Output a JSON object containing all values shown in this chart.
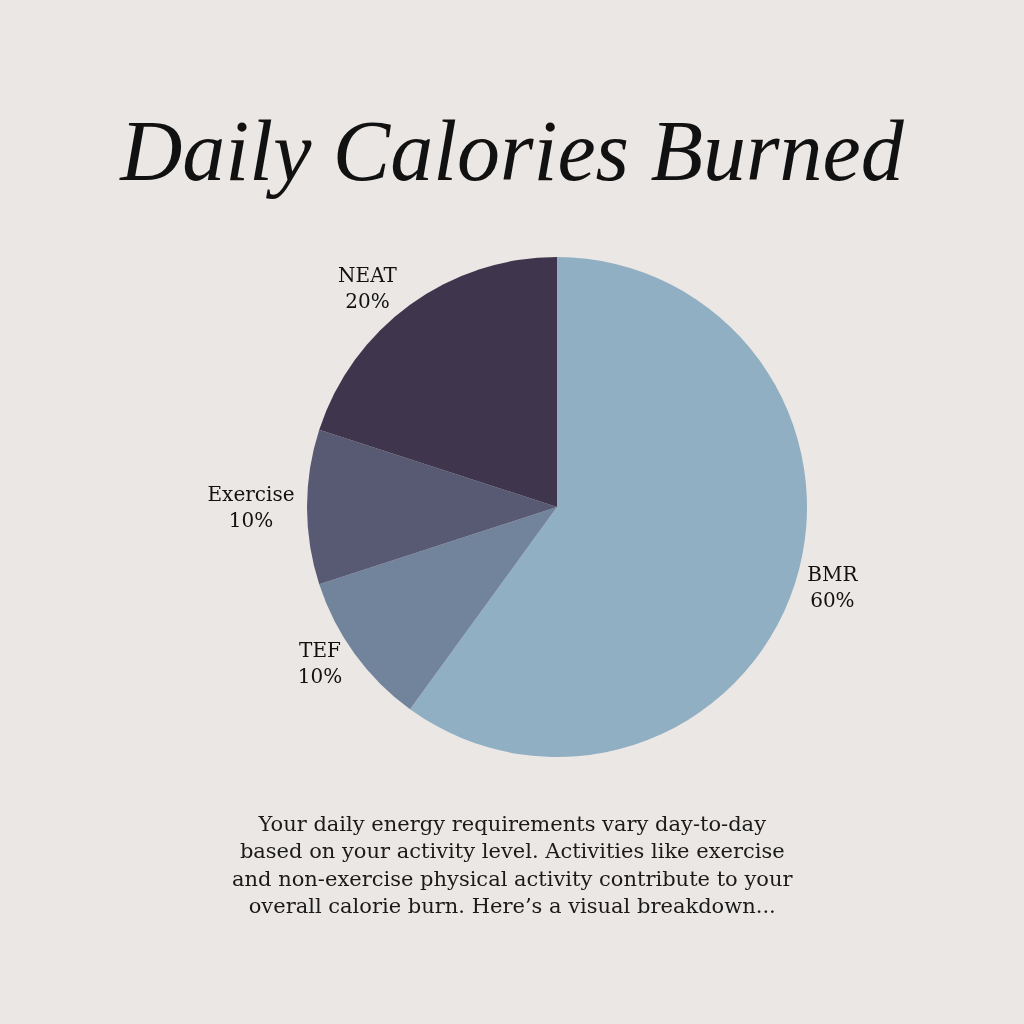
{
  "chart_data": {
    "type": "pie",
    "title": "Daily Calories Burned",
    "categories": [
      "BMR",
      "TEF",
      "Exercise",
      "NEAT"
    ],
    "values": [
      60,
      10,
      10,
      20
    ],
    "value_labels": [
      "60%",
      "10%",
      "10%",
      "20%"
    ],
    "colors": [
      "#90afc3",
      "#72849b",
      "#585a74",
      "#3f354d"
    ],
    "legend": false,
    "annotations": [
      "Your daily energy requirements vary day-to-day\nbased on your activity level. Activities like exercise\nand non-exercise physical activity contribute to your\noverall calorie burn. Here’s a visual breakdown..."
    ]
  }
}
